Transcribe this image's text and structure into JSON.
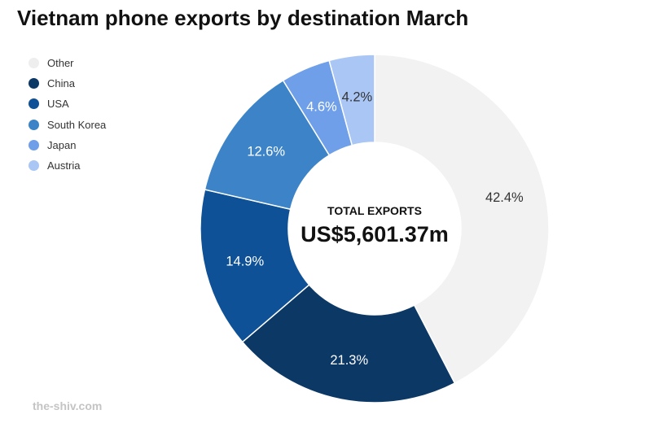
{
  "chart_data": {
    "type": "pie",
    "title": "Vietnam phone exports by destination March",
    "center_label": "TOTAL EXPORTS",
    "center_value": "US$5,601.37m",
    "legend_position": "top-left",
    "slices": [
      {
        "name": "Other",
        "value": 42.4,
        "label": "42.4%",
        "color": "#f2f2f2",
        "label_color": "#333333"
      },
      {
        "name": "China",
        "value": 21.3,
        "label": "21.3%",
        "color": "#0c3866",
        "label_color": "#ffffff"
      },
      {
        "name": "USA",
        "value": 14.9,
        "label": "14.9%",
        "color": "#0f5196",
        "label_color": "#ffffff"
      },
      {
        "name": "South Korea",
        "value": 12.6,
        "label": "12.6%",
        "color": "#3c84c7",
        "label_color": "#ffffff"
      },
      {
        "name": "Japan",
        "value": 4.6,
        "label": "4.6%",
        "color": "#6f9fe8",
        "label_color": "#ffffff"
      },
      {
        "name": "Austria",
        "value": 4.2,
        "label": "4.2%",
        "color": "#a9c6f5",
        "label_color": "#333333"
      }
    ]
  },
  "watermark": "the-shiv.com"
}
